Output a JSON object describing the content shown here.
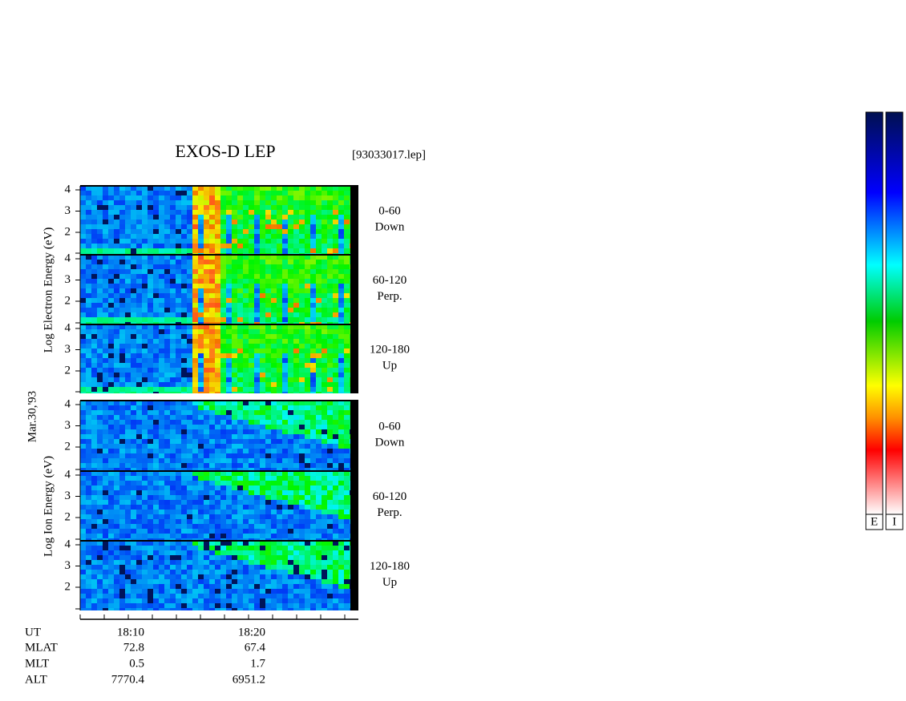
{
  "title": "EXOS-D LEP",
  "file": "[93033017.lep]",
  "date": "Mar.30,'93",
  "electron_axis_label": "Log  Electron  Energy  (eV)",
  "ion_axis_label": "Log  Ion  Energy  (eV)",
  "panels": [
    {
      "yticks": [
        4,
        3,
        2
      ],
      "label": [
        "0-60",
        "Down"
      ]
    },
    {
      "yticks": [
        4,
        3,
        2
      ],
      "label": [
        "60-120",
        "Perp."
      ]
    },
    {
      "yticks": [
        4,
        3,
        2
      ],
      "label": [
        "120-180",
        "Up"
      ]
    },
    {
      "yticks": [
        4,
        3,
        2
      ],
      "label": [
        "0-60",
        "Down"
      ]
    },
    {
      "yticks": [
        4,
        3,
        2
      ],
      "label": [
        "60-120",
        "Perp."
      ]
    },
    {
      "yticks": [
        4,
        3,
        2
      ],
      "label": [
        "120-180",
        "Up"
      ]
    }
  ],
  "ephemeris": [
    [
      "UT",
      "18:10",
      "18:20"
    ],
    [
      "MLAT",
      "72.8",
      "67.4"
    ],
    [
      "MLT",
      "0.5",
      "1.7"
    ],
    [
      "ALT",
      "7770.4",
      "6951.2"
    ]
  ],
  "colorbars": [
    "E",
    "I"
  ]
}
